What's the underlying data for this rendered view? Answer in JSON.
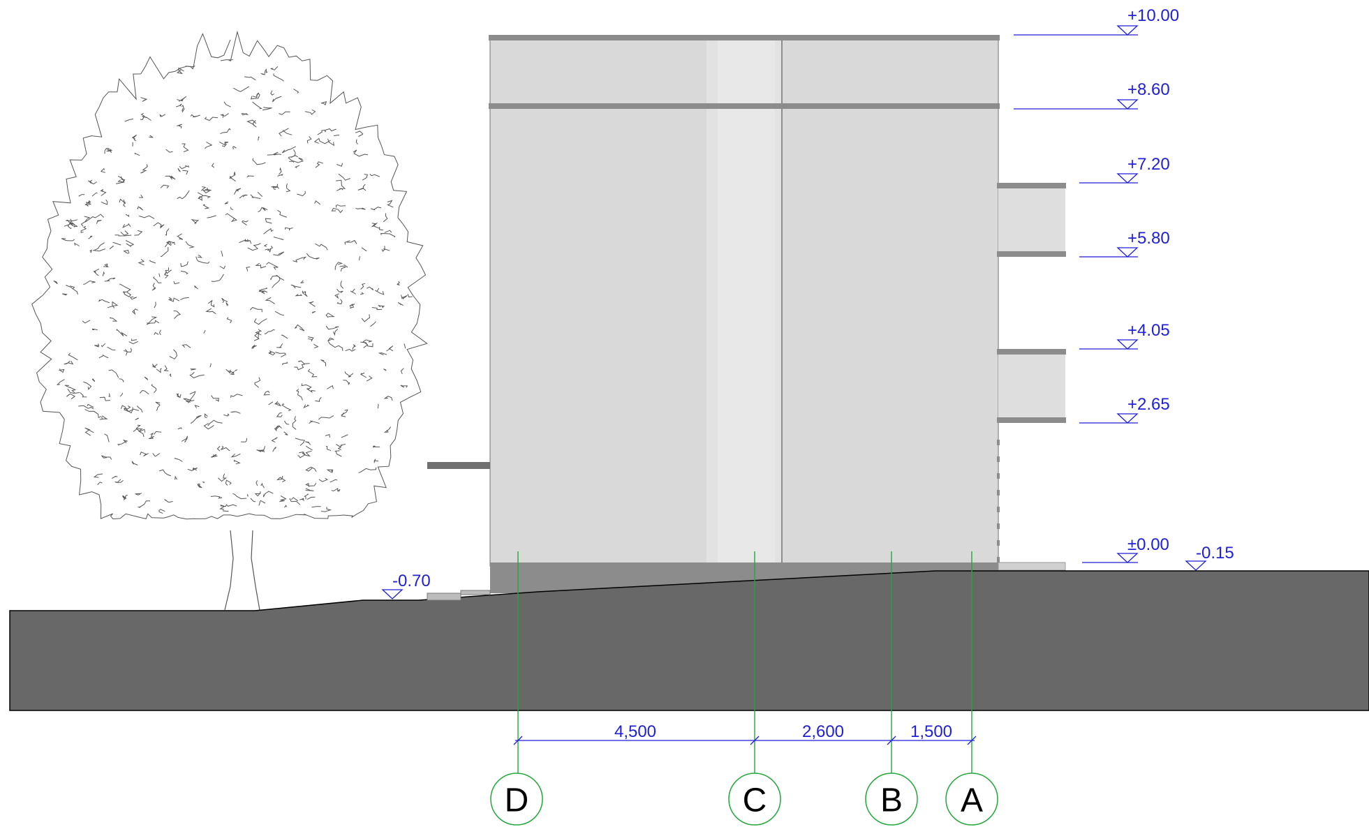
{
  "levels": [
    {
      "label": "+10.00"
    },
    {
      "label": "+8.60"
    },
    {
      "label": "+7.20"
    },
    {
      "label": "+5.80"
    },
    {
      "label": "+4.05"
    },
    {
      "label": "+2.65"
    },
    {
      "label": "±0.00"
    },
    {
      "label": "-0.15"
    },
    {
      "label": "-0.70"
    }
  ],
  "dimensions": [
    {
      "label": "4,500"
    },
    {
      "label": "2,600"
    },
    {
      "label": "1,500"
    }
  ],
  "grid_axes": [
    {
      "label": "D"
    },
    {
      "label": "C"
    },
    {
      "label": "B"
    },
    {
      "label": "A"
    }
  ],
  "colors": {
    "annotation": "#1f1fd6",
    "grid_line": "#22a83a",
    "ground": "#686868",
    "facade": "#d9d9d9",
    "slab": "#8c8c8c"
  }
}
